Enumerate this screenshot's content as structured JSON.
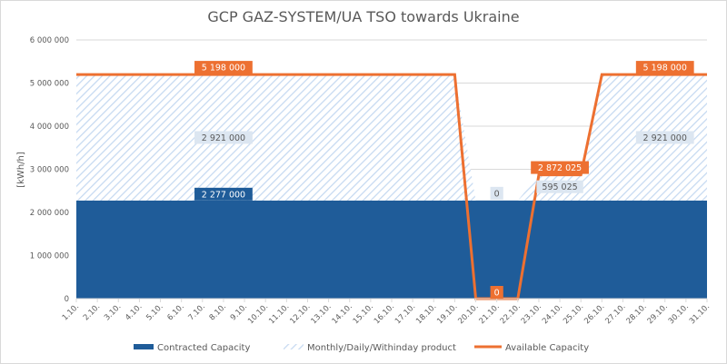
{
  "chart_data": {
    "type": "area",
    "title": "GCP GAZ-SYSTEM/UA TSO towards Ukraine",
    "ylabel": "[kWh/h]",
    "xlabel": "",
    "ylim": [
      0,
      6000000
    ],
    "yticks": [
      0,
      1000000,
      2000000,
      3000000,
      4000000,
      5000000,
      6000000
    ],
    "ytick_labels": [
      "0",
      "1 000 000",
      "2 000 000",
      "3 000 000",
      "4 000 000",
      "5 000 000",
      "6 000 000"
    ],
    "grid": true,
    "legend_position": "bottom",
    "categories": [
      "1.10.",
      "2.10.",
      "3.10.",
      "4.10.",
      "5.10.",
      "6.10.",
      "7.10.",
      "8.10.",
      "9.10.",
      "10.10.",
      "11.10.",
      "12.10.",
      "13.10.",
      "14.10.",
      "15.10.",
      "16.10.",
      "17.10.",
      "18.10.",
      "19.10.",
      "20.10.",
      "21.10.",
      "22.10.",
      "23.10.",
      "24.10.",
      "25.10.",
      "26.10.",
      "27.10.",
      "28.10.",
      "29.10.",
      "30.10.",
      "31.10."
    ],
    "series": [
      {
        "name": "Contracted Capacity",
        "kind": "stacked-area",
        "color": "#1f5c99",
        "values": [
          2277000,
          2277000,
          2277000,
          2277000,
          2277000,
          2277000,
          2277000,
          2277000,
          2277000,
          2277000,
          2277000,
          2277000,
          2277000,
          2277000,
          2277000,
          2277000,
          2277000,
          2277000,
          2277000,
          2277000,
          2277000,
          2277000,
          2277000,
          2277000,
          2277000,
          2277000,
          2277000,
          2277000,
          2277000,
          2277000,
          2277000
        ]
      },
      {
        "name": "Monthly/Daily/Withinday product",
        "kind": "stacked-area-hatched",
        "color": "#c5d9f1",
        "values": [
          2921000,
          2921000,
          2921000,
          2921000,
          2921000,
          2921000,
          2921000,
          2921000,
          2921000,
          2921000,
          2921000,
          2921000,
          2921000,
          2921000,
          2921000,
          2921000,
          2921000,
          2921000,
          2921000,
          0,
          0,
          0,
          595025,
          595025,
          595025,
          2921000,
          2921000,
          2921000,
          2921000,
          2921000,
          2921000
        ]
      },
      {
        "name": "Available Capacity",
        "kind": "line",
        "color": "#ed7031",
        "values": [
          5198000,
          5198000,
          5198000,
          5198000,
          5198000,
          5198000,
          5198000,
          5198000,
          5198000,
          5198000,
          5198000,
          5198000,
          5198000,
          5198000,
          5198000,
          5198000,
          5198000,
          5198000,
          5198000,
          0,
          0,
          0,
          2872025,
          2872025,
          2872025,
          5198000,
          5198000,
          5198000,
          5198000,
          5198000,
          5198000
        ]
      }
    ],
    "data_labels": [
      {
        "series": 2,
        "category": "8.10.",
        "text": "5 198 000"
      },
      {
        "series": 2,
        "category": "29.10.",
        "text": "5 198 000"
      },
      {
        "series": 1,
        "category": "8.10.",
        "text": "2 921 000"
      },
      {
        "series": 1,
        "category": "29.10.",
        "text": "2 921 000"
      },
      {
        "series": 0,
        "category": "8.10.",
        "text": "2 277 000"
      },
      {
        "series": 1,
        "category": "21.10.",
        "text": "0"
      },
      {
        "series": 2,
        "category": "21.10.",
        "text": "0"
      },
      {
        "series": 2,
        "category": "24.10.",
        "text": "2 872 025"
      },
      {
        "series": 1,
        "category": "24.10.",
        "text": "595 025"
      }
    ]
  }
}
